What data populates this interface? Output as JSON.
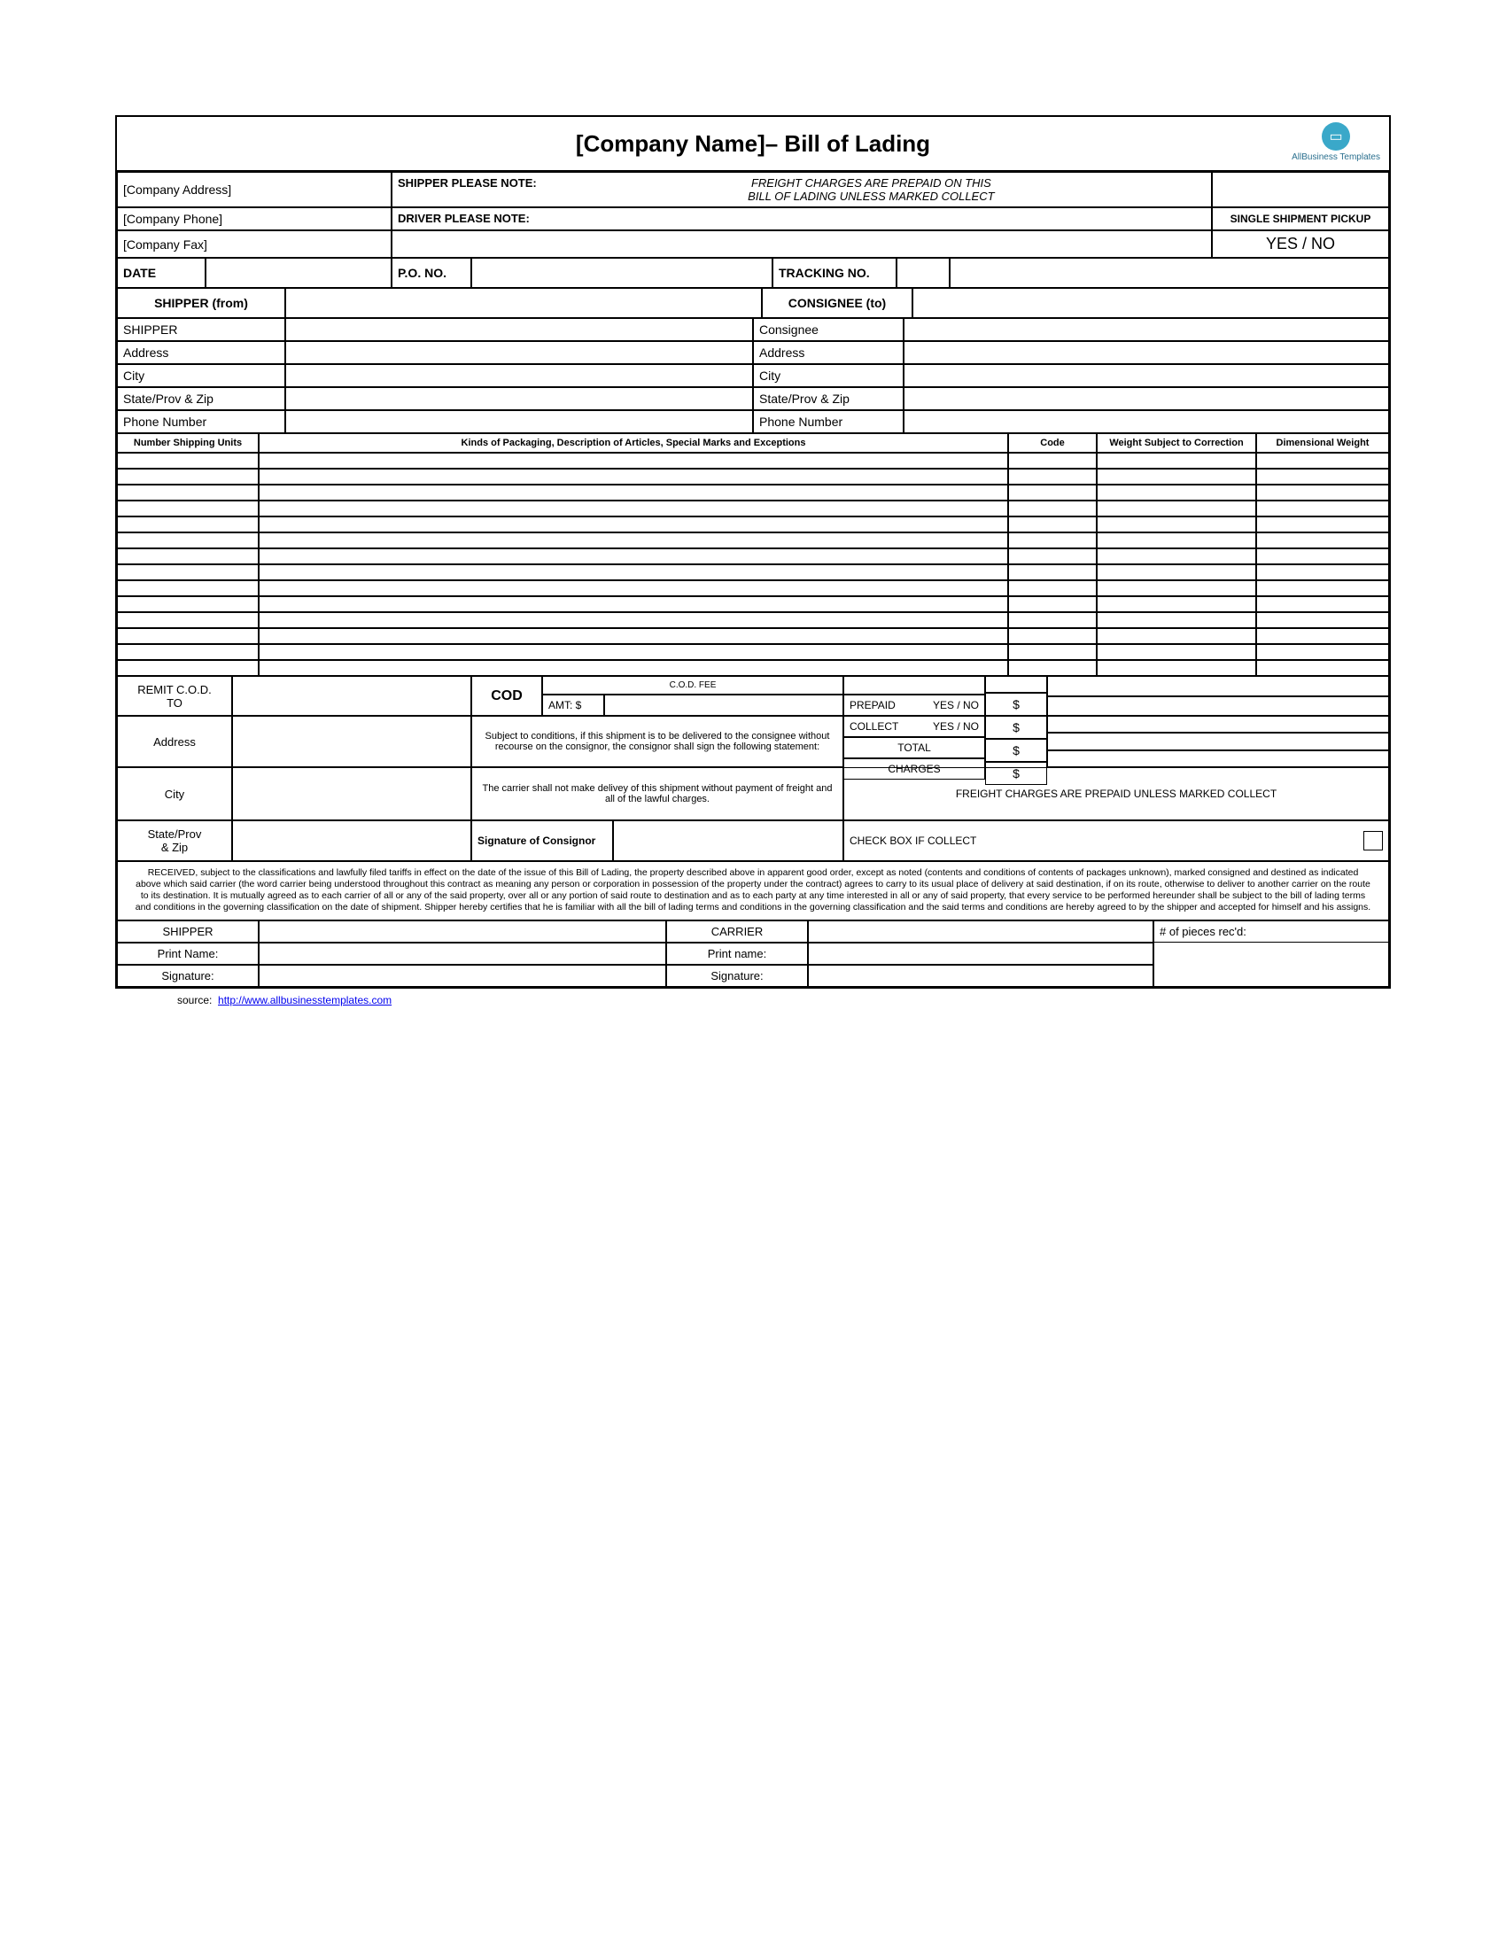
{
  "title": "[Company Name]–  Bill of Lading",
  "logo_text": "AllBusiness Templates",
  "company": {
    "address": "[Company Address]",
    "phone": "[Company Phone]",
    "fax": "[Company Fax]"
  },
  "notes": {
    "shipper_label": "SHIPPER PLEASE NOTE:",
    "shipper_text": "FREIGHT CHARGES ARE PREPAID ON THIS BILL OF LADING UNLESS MARKED COLLECT",
    "driver_label": "DRIVER PLEASE NOTE:"
  },
  "shipment_pickup": {
    "label": "SINGLE SHIPMENT PICKUP",
    "value": "YES / NO"
  },
  "refs": {
    "date": "DATE",
    "po": "P.O. NO.",
    "tracking": "TRACKING NO."
  },
  "parties": {
    "shipper_from": "SHIPPER (from)",
    "consignee_to": "CONSIGNEE (to)",
    "shipper": "SHIPPER",
    "consignee": "Consignee",
    "address": "Address",
    "city": "City",
    "state_zip": "State/Prov & Zip",
    "phone": "Phone Number"
  },
  "line_headers": {
    "units": "Number Shipping Units",
    "desc": "Kinds of Packaging, Description of Articles, Special Marks and Exceptions",
    "code": "Code",
    "wsc": "Weight Subject to Correction",
    "dw": "Dimensional Weight"
  },
  "remit": {
    "remit_cod": "REMIT C.O.D.",
    "to": "TO",
    "address": "Address",
    "city": "City",
    "state_zip": "State/Prov & Zip",
    "cod": "COD",
    "amt": "AMT: $",
    "cod_fee": "C.O.D. FEE",
    "prepaid": "PREPAID",
    "collect": "COLLECT",
    "yes_no": "YES  /  NO",
    "total": "TOTAL",
    "charges": "CHARGES",
    "dollar": "$",
    "cond_text": "Subject to conditions, if this shipment is to be delivered to the consignee without recourse on the consignor, the consignor shall sign the following statement:",
    "carrier_text": "The carrier shall not make delivey of this shipment without payment of freight and all of the lawful charges.",
    "sig_consignor": "Signature of Consignor",
    "freight_note": "FREIGHT CHARGES ARE PREPAID UNLESS MARKED COLLECT",
    "check_box": "CHECK BOX IF COLLECT"
  },
  "legal": "RECEIVED, subject to the classifications and lawfully filed tariffs in effect on the date of the issue of this Bill of Lading, the property described above in apparent good order, except as noted (contents and conditions of contents of packages unknown), marked consigned and destined as indicated above which said carrier (the word carrier being understood throughout this contract as meaning any person or corporation in possession of the property under the contract) agrees to carry to its usual place of delivery at said destination, if on its route, otherwise to deliver to another carrier on the route to its destination.  It is mutually agreed as to each carrier of all or any of the said property, over all or any portion of said route to destination and as to each party at any time interested in all or any of said property, that every service to be performed hereunder shall be subject to the bill of lading terms and conditions in the governing classification on the date of shipment.  Shipper hereby certifies that he is familiar with all the bill of lading terms and conditions in the governing classification and the said terms and conditions are hereby agreed to by the shipper and accepted for himself and his assigns.",
  "signatures": {
    "shipper": "SHIPPER",
    "carrier": "CARRIER",
    "print_name_s": "Print Name:",
    "print_name_c": "Print name:",
    "signature": "Signature:",
    "pieces": "# of pieces rec'd:"
  },
  "source": {
    "label": "source:",
    "url_text": "http://www.allbusinesstemplates.com"
  },
  "style": {
    "border_color": "#000000",
    "bg": "#ffffff",
    "logo_bg": "#3aa8c9",
    "line_item_rows": 14
  }
}
